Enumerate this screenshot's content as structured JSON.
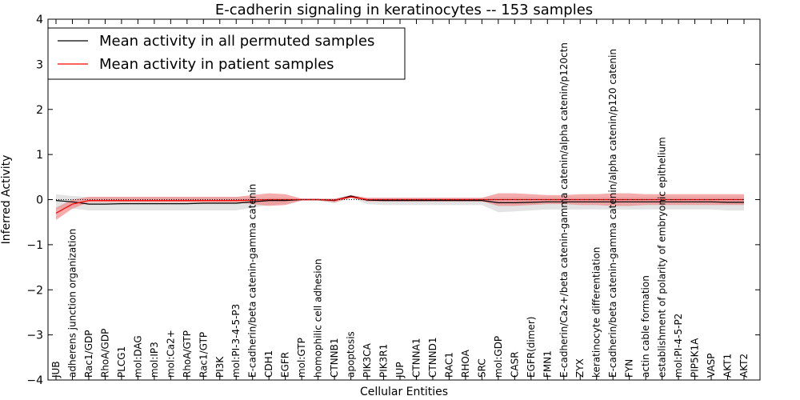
{
  "chart_data": {
    "type": "line",
    "title": "E-cadherin signaling in keratinocytes -- 153 samples",
    "xlabel": "Cellular Entities",
    "ylabel": "Inferred Activity",
    "ylim": [
      -4,
      4
    ],
    "yticks": [
      -4,
      -3,
      -2,
      -1,
      0,
      1,
      2,
      3,
      4
    ],
    "ytick_labels": [
      "−4",
      "−3",
      "−2",
      "−1",
      "0",
      "1",
      "2",
      "3",
      "4"
    ],
    "grid": false,
    "legend_position": "top-left",
    "categories": [
      "JUB",
      "adherens junction organization",
      "Rac1/GDP",
      "RhoA/GDP",
      "PLCG1",
      "mol:DAG",
      "mol:IP3",
      "mol:Ca2+",
      "RhoA/GTP",
      "Rac1/GTP",
      "PI3K",
      "mol:PI-3-4-5-P3",
      "E-cadherin/beta catenin-gamma catenin",
      "CDH1",
      "EGFR",
      "mol:GTP",
      "homophilic cell adhesion",
      "CTNNB1",
      "apoptosis",
      "PIK3CA",
      "PIK3R1",
      "JUP",
      "CTNNA1",
      "CTNND1",
      "RAC1",
      "RHOA",
      "SRC",
      "mol:GDP",
      "CASR",
      "EGFR(dimer)",
      "FMN1",
      "E-cadherin/Ca2+/beta catenin-gamma catenin/alpha catenin/p120ctn",
      "ZYX",
      "keratinocyte differentiation",
      "E-cadherin/beta catenin-gamma catenin/alpha catenin/p120 catenin",
      "FYN",
      "actin cable formation",
      "establishment of polarity of embryonic epithelium",
      "mol:PI-4-5-P2",
      "PIP5K1A",
      "VASP",
      "AKT1",
      "AKT2"
    ],
    "series": [
      {
        "name": "Mean activity in all permuted samples",
        "color": "#000000",
        "values": [
          -0.02,
          -0.05,
          -0.1,
          -0.1,
          -0.09,
          -0.09,
          -0.09,
          -0.09,
          -0.09,
          -0.08,
          -0.08,
          -0.08,
          -0.05,
          -0.02,
          -0.02,
          0.0,
          0.0,
          -0.02,
          0.08,
          -0.01,
          -0.02,
          -0.02,
          -0.02,
          -0.02,
          -0.02,
          -0.02,
          -0.02,
          -0.07,
          -0.07,
          -0.06,
          -0.05,
          -0.05,
          -0.05,
          -0.05,
          -0.05,
          -0.05,
          -0.05,
          -0.05,
          -0.05,
          -0.05,
          -0.05,
          -0.06,
          -0.06
        ],
        "band_upper": [
          0.12,
          0.08,
          0.06,
          0.06,
          0.06,
          0.06,
          0.06,
          0.06,
          0.06,
          0.06,
          0.06,
          0.06,
          0.05,
          0.04,
          0.04,
          0.02,
          0.02,
          0.02,
          0.1,
          0.04,
          0.04,
          0.04,
          0.04,
          0.04,
          0.04,
          0.04,
          0.04,
          0.06,
          0.06,
          0.06,
          0.06,
          0.06,
          0.06,
          0.06,
          0.06,
          0.06,
          0.06,
          0.06,
          0.06,
          0.06,
          0.06,
          0.06,
          0.06
        ],
        "band_lower": [
          -0.2,
          -0.2,
          -0.24,
          -0.24,
          -0.24,
          -0.24,
          -0.24,
          -0.24,
          -0.24,
          -0.24,
          -0.24,
          -0.24,
          -0.18,
          -0.12,
          -0.1,
          -0.02,
          -0.02,
          -0.08,
          0.04,
          -0.1,
          -0.12,
          -0.12,
          -0.12,
          -0.12,
          -0.12,
          -0.12,
          -0.12,
          -0.28,
          -0.26,
          -0.24,
          -0.22,
          -0.22,
          -0.22,
          -0.22,
          -0.22,
          -0.22,
          -0.22,
          -0.22,
          -0.22,
          -0.22,
          -0.22,
          -0.24,
          -0.24
        ]
      },
      {
        "name": "Mean activity in patient samples",
        "color": "#ff0000",
        "values": [
          -0.3,
          -0.1,
          -0.02,
          -0.02,
          -0.02,
          -0.02,
          -0.02,
          -0.02,
          -0.02,
          -0.02,
          -0.02,
          -0.02,
          -0.01,
          0.0,
          0.0,
          0.0,
          0.0,
          -0.01,
          0.06,
          0.0,
          0.0,
          0.0,
          0.0,
          0.0,
          0.0,
          0.0,
          0.0,
          0.0,
          0.0,
          0.0,
          0.0,
          0.0,
          0.0,
          0.0,
          0.0,
          0.0,
          0.0,
          0.0,
          0.0,
          0.0,
          0.0,
          0.0,
          0.0
        ],
        "band_upper": [
          -0.18,
          0.0,
          0.06,
          0.06,
          0.06,
          0.06,
          0.06,
          0.06,
          0.06,
          0.06,
          0.06,
          0.06,
          0.1,
          0.14,
          0.12,
          0.02,
          0.02,
          0.02,
          0.1,
          0.04,
          0.04,
          0.04,
          0.04,
          0.04,
          0.04,
          0.04,
          0.04,
          0.14,
          0.14,
          0.12,
          0.1,
          0.1,
          0.12,
          0.12,
          0.14,
          0.14,
          0.12,
          0.12,
          0.12,
          0.12,
          0.12,
          0.12,
          0.12
        ],
        "band_lower": [
          -0.45,
          -0.2,
          -0.06,
          -0.06,
          -0.06,
          -0.06,
          -0.06,
          -0.06,
          -0.06,
          -0.06,
          -0.06,
          -0.06,
          -0.1,
          -0.14,
          -0.12,
          -0.02,
          -0.02,
          -0.06,
          0.04,
          -0.04,
          -0.04,
          -0.04,
          -0.04,
          -0.04,
          -0.04,
          -0.04,
          -0.04,
          -0.14,
          -0.14,
          -0.12,
          -0.1,
          -0.1,
          -0.12,
          -0.12,
          -0.14,
          -0.14,
          -0.12,
          -0.12,
          -0.12,
          -0.12,
          -0.12,
          -0.12,
          -0.12
        ]
      }
    ],
    "reference_line": {
      "y": 0,
      "style": "dotted",
      "color": "#000000"
    },
    "band_colors": {
      "permuted": "#cccccc",
      "patient": "#f08080"
    }
  }
}
